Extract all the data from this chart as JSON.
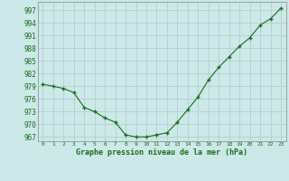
{
  "x": [
    0,
    1,
    2,
    3,
    4,
    5,
    6,
    7,
    8,
    9,
    10,
    11,
    12,
    13,
    14,
    15,
    16,
    17,
    18,
    19,
    20,
    21,
    22,
    23
  ],
  "y": [
    979.5,
    979.0,
    978.5,
    977.5,
    974.0,
    973.0,
    971.5,
    970.5,
    967.5,
    967.0,
    967.0,
    967.5,
    968.0,
    970.5,
    973.5,
    976.5,
    980.5,
    983.5,
    986.0,
    988.5,
    990.5,
    993.5,
    995.0,
    997.5
  ],
  "line_color": "#1a6e1a",
  "marker_color": "#1a6e1a",
  "bg_color": "#cce8e8",
  "grid_color": "#aacccc",
  "xlabel": "Graphe pression niveau de la mer (hPa)",
  "xlabel_color": "#1a6e1a",
  "ytick_color": "#1a6e1a",
  "xtick_color": "#1a6e1a",
  "ylim": [
    966,
    999
  ],
  "xlim": [
    -0.5,
    23.5
  ],
  "yticks": [
    967,
    970,
    973,
    976,
    979,
    982,
    985,
    988,
    991,
    994,
    997
  ],
  "xticks": [
    0,
    1,
    2,
    3,
    4,
    5,
    6,
    7,
    8,
    9,
    10,
    11,
    12,
    13,
    14,
    15,
    16,
    17,
    18,
    19,
    20,
    21,
    22,
    23
  ]
}
